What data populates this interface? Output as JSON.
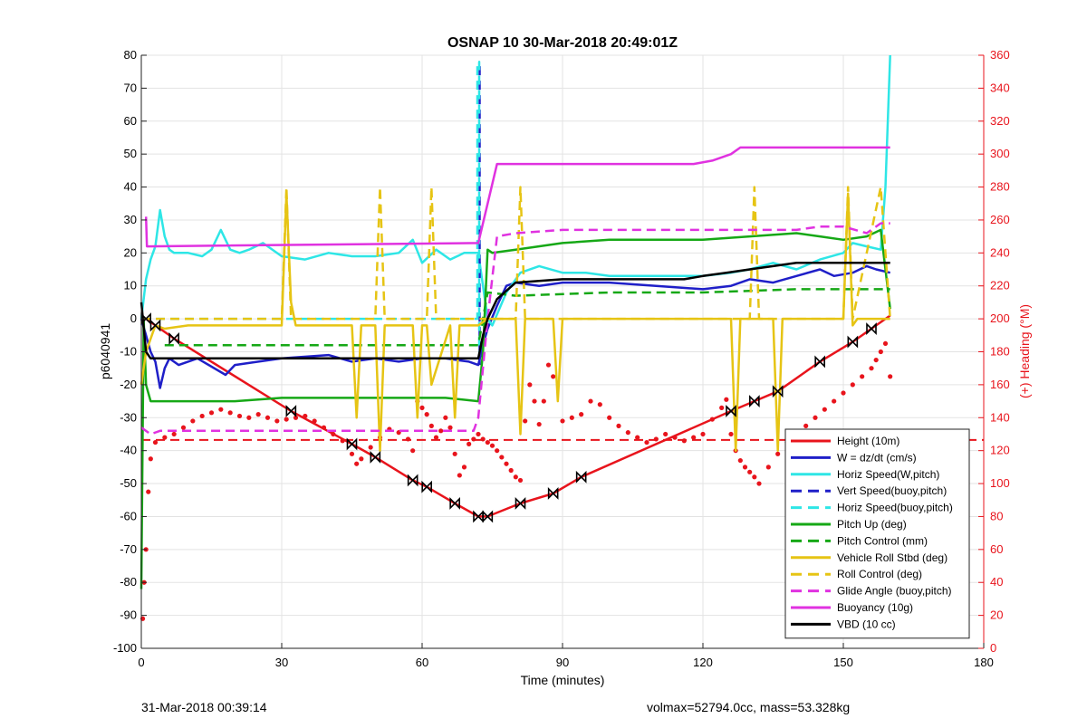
{
  "footer": {
    "timestamp": "31-Mar-2018 00:39:14",
    "summary": "volmax=52794.0cc, mass=53.328kg"
  },
  "chart_data": {
    "type": "line",
    "title": "OSNAP 10 30-Mar-2018 20:49:01Z",
    "xlabel": "Time (minutes)",
    "ylabel": "p6040941",
    "y2label": "(+) Heading (°M)",
    "xlim": [
      0,
      180
    ],
    "ylim": [
      -100,
      80
    ],
    "y2lim": [
      0,
      360
    ],
    "xticks": [
      0,
      30,
      60,
      90,
      120,
      150,
      180
    ],
    "yticks": [
      -100,
      -90,
      -80,
      -70,
      -60,
      -50,
      -40,
      -30,
      -20,
      -10,
      0,
      10,
      20,
      30,
      40,
      50,
      60,
      70,
      80
    ],
    "y2ticks": [
      0,
      20,
      40,
      60,
      80,
      100,
      120,
      140,
      160,
      180,
      200,
      220,
      240,
      260,
      280,
      300,
      320,
      340,
      360
    ],
    "grid": true,
    "legend_position": "bottom-right",
    "colors": {
      "red": "#e8141c",
      "blue": "#1f1fc8",
      "cyan": "#2ee6e6",
      "green": "#16a816",
      "yellow": "#e6c414",
      "magenta": "#e032e0",
      "black": "#000000",
      "axis_right": "#e8141c"
    },
    "series": [
      {
        "name": "Height (10m)",
        "color": "red",
        "style": "solid",
        "x": [
          0,
          1,
          7,
          32,
          45,
          50,
          58,
          61,
          67,
          72,
          74,
          81,
          88,
          94,
          126,
          131,
          136,
          145,
          152,
          156,
          160
        ],
        "y": [
          0,
          0,
          -6,
          -28,
          -38,
          -42,
          -49,
          -51,
          -56,
          -60,
          -60,
          -56,
          -53,
          -48,
          -28,
          -25,
          -22,
          -13,
          -7,
          -3,
          1
        ]
      },
      {
        "name": "W = dz/dt (cm/s)",
        "color": "blue",
        "style": "solid",
        "x": [
          0,
          1,
          2,
          3,
          4,
          5,
          6,
          8,
          12,
          18,
          20,
          25,
          30,
          40,
          45,
          50,
          55,
          60,
          65,
          70,
          72,
          73,
          74,
          76,
          78,
          80,
          85,
          90,
          100,
          110,
          120,
          126,
          130,
          135,
          140,
          145,
          148,
          152,
          155,
          157,
          160
        ],
        "y": [
          0,
          -5,
          -10,
          -13,
          -21,
          -15,
          -12,
          -14,
          -12,
          -17,
          -14,
          -13,
          -12,
          -11,
          -13,
          -12,
          -13,
          -12,
          -12,
          -13,
          -14,
          -8,
          -3,
          4,
          10,
          11,
          10,
          11,
          11,
          10,
          9,
          10,
          12,
          11,
          13,
          15,
          13,
          14,
          16,
          15,
          14
        ]
      },
      {
        "name": "Horiz Speed(W,pitch)",
        "color": "cyan",
        "style": "solid",
        "x": [
          0,
          1,
          2,
          3,
          4,
          5,
          6,
          7,
          10,
          13,
          15,
          17,
          19,
          21,
          23,
          26,
          30,
          35,
          40,
          45,
          50,
          55,
          58,
          60,
          63,
          66,
          69,
          72,
          73,
          74,
          75,
          78,
          81,
          85,
          90,
          95,
          100,
          110,
          120,
          126,
          130,
          135,
          140,
          145,
          150,
          152,
          155,
          158,
          159,
          160
        ],
        "y": [
          0,
          12,
          18,
          22,
          33,
          25,
          21,
          20,
          20,
          19,
          21,
          27,
          21,
          20,
          21,
          23,
          19,
          18,
          20,
          19,
          19,
          20,
          24,
          17,
          21,
          18,
          20,
          20,
          10,
          0,
          -2,
          8,
          14,
          16,
          14,
          14,
          13,
          13,
          13,
          14,
          15,
          17,
          15,
          18,
          20,
          23,
          22,
          21,
          40,
          80
        ]
      },
      {
        "name": "Vert Speed(buoy,pitch)",
        "color": "blue",
        "style": "dashed",
        "x": [
          72.3,
          72.3
        ],
        "y": [
          -14,
          78
        ]
      },
      {
        "name": "Horiz Speed(buoy,pitch)",
        "color": "cyan",
        "style": "dashed",
        "x": [
          0,
          1,
          10,
          30,
          60,
          71.8,
          71.8,
          72.2,
          72.2
        ],
        "y": [
          0,
          0,
          0,
          0,
          0,
          0,
          78,
          78,
          -10
        ]
      },
      {
        "name": "Pitch Up (deg)",
        "color": "green",
        "style": "solid",
        "x": [
          0,
          0.5,
          1,
          2,
          5,
          10,
          20,
          30,
          40,
          50,
          60,
          65,
          72,
          73,
          74,
          75,
          80,
          90,
          100,
          110,
          120,
          130,
          140,
          145,
          150,
          155,
          158,
          160
        ],
        "y": [
          -82,
          0,
          -20,
          -25,
          -25,
          -25,
          -25,
          -24,
          -24,
          -24,
          -24,
          -24,
          -25,
          -10,
          21,
          20,
          21,
          23,
          24,
          24,
          24,
          25,
          26,
          25,
          24,
          25,
          27,
          3
        ]
      },
      {
        "name": "Pitch Control (mm)",
        "color": "green",
        "style": "dashed",
        "x": [
          5,
          72,
          72,
          73,
          74,
          80,
          100,
          120,
          140,
          160
        ],
        "y": [
          -8,
          -8,
          -8,
          0,
          8,
          7,
          8,
          8,
          9,
          9
        ]
      },
      {
        "name": "Vehicle Roll Stbd (deg)",
        "color": "yellow",
        "style": "solid",
        "x": [
          0,
          1,
          3,
          5,
          10,
          30,
          31,
          32,
          33,
          45,
          46,
          47,
          50,
          51,
          52,
          58,
          59,
          60,
          61,
          62,
          66,
          67,
          68,
          72,
          74,
          80,
          81,
          82,
          85,
          88,
          89,
          90,
          126,
          127,
          128,
          135,
          136,
          137,
          150,
          151,
          152,
          153,
          155,
          158,
          160
        ],
        "y": [
          -20,
          -10,
          -2,
          -3,
          -2,
          -2,
          38,
          5,
          -2,
          -2,
          -30,
          -2,
          -2,
          -40,
          -2,
          -2,
          -30,
          -2,
          -2,
          -20,
          -2,
          -30,
          -2,
          -2,
          0,
          0,
          -35,
          0,
          0,
          0,
          -25,
          0,
          0,
          -40,
          0,
          0,
          -40,
          0,
          0,
          38,
          -2,
          0,
          0,
          0,
          0
        ]
      },
      {
        "name": "Roll Control (deg)",
        "color": "yellow",
        "style": "dashed",
        "x": [
          0,
          30,
          31,
          32,
          50,
          51,
          52,
          61,
          62,
          63,
          72,
          80,
          81,
          82,
          130,
          131,
          132,
          150,
          151,
          152,
          158,
          160
        ],
        "y": [
          0,
          0,
          40,
          0,
          0,
          40,
          0,
          0,
          40,
          0,
          0,
          0,
          40,
          0,
          0,
          40,
          0,
          0,
          40,
          0,
          40,
          0
        ]
      },
      {
        "name": "Glide Angle (buoy,pitch)",
        "color": "magenta",
        "style": "dashed",
        "x": [
          0,
          2,
          4,
          10,
          30,
          60,
          71,
          72,
          74,
          76,
          80,
          90,
          100,
          110,
          120,
          130,
          140,
          145,
          150,
          155,
          158,
          160
        ],
        "y": [
          -33,
          -35,
          -34,
          -34,
          -34,
          -34,
          -34,
          -30,
          0,
          25,
          26,
          27,
          27,
          27,
          27,
          27,
          27,
          28,
          28,
          26,
          29,
          29
        ]
      },
      {
        "name": "Buoyancy (10g)",
        "color": "magenta",
        "style": "solid",
        "x": [
          1,
          1.2,
          72,
          76,
          80,
          100,
          118,
          122,
          126,
          128,
          130,
          140,
          155,
          160
        ],
        "y": [
          31,
          22,
          23,
          47,
          47,
          47,
          47,
          48,
          50,
          52,
          52,
          52,
          52,
          52
        ]
      },
      {
        "name": "VBD (10 cc)",
        "color": "black",
        "style": "solid",
        "x": [
          0,
          1,
          2,
          10,
          30,
          70,
          72,
          73,
          74,
          76,
          80,
          90,
          110,
          116,
          120,
          125,
          130,
          135,
          140,
          160
        ],
        "y": [
          5,
          -10,
          -12,
          -12,
          -12,
          -12,
          -12,
          -5,
          0,
          6,
          11,
          12,
          12,
          12,
          13,
          14,
          15,
          16,
          17,
          17
        ]
      }
    ],
    "heading_reference": {
      "name": "Heading reference",
      "color": "red",
      "style": "dashed",
      "y2": 126.5,
      "x": [
        0,
        180
      ]
    },
    "heading_points": {
      "color": "red",
      "axis": "y2",
      "x": [
        0.3,
        0.6,
        1,
        1.5,
        2,
        3,
        5,
        7,
        9,
        11,
        13,
        15,
        17,
        19,
        21,
        23,
        25,
        27,
        29,
        31,
        33,
        35,
        37,
        39,
        41,
        43,
        45,
        46,
        47,
        49,
        51,
        53,
        55,
        57,
        58,
        59,
        60,
        61,
        62,
        63,
        64,
        65,
        66,
        67,
        68,
        69,
        70,
        71,
        72,
        73,
        74,
        75,
        76,
        77,
        78,
        79,
        80,
        81,
        82,
        83,
        84,
        85,
        86,
        87,
        88,
        90,
        92,
        94,
        96,
        98,
        100,
        102,
        104,
        106,
        108,
        110,
        112,
        114,
        116,
        118,
        120,
        122,
        124,
        125,
        126,
        127,
        128,
        129,
        130,
        131,
        132,
        134,
        136,
        138,
        140,
        142,
        144,
        146,
        148,
        150,
        152,
        154,
        156,
        157,
        158,
        159,
        160
      ],
      "y2": [
        18,
        40,
        60,
        95,
        115,
        125,
        128,
        130,
        134,
        138,
        141,
        143,
        145,
        143,
        141,
        140,
        142,
        140,
        138,
        139,
        140,
        141,
        138,
        134,
        130,
        126,
        118,
        112,
        115,
        122,
        128,
        133,
        131,
        127,
        120,
        150,
        146,
        142,
        135,
        128,
        132,
        140,
        134,
        118,
        105,
        110,
        124,
        127,
        130,
        127,
        125,
        123,
        120,
        116,
        112,
        108,
        104,
        102,
        138,
        160,
        150,
        136,
        150,
        172,
        165,
        138,
        140,
        142,
        150,
        148,
        140,
        135,
        131,
        128,
        125,
        127,
        130,
        128,
        126,
        128,
        130,
        139,
        146,
        151,
        130,
        120,
        114,
        110,
        107,
        104,
        100,
        110,
        118,
        125,
        130,
        135,
        140,
        145,
        150,
        155,
        160,
        165,
        170,
        175,
        180,
        185,
        165
      ]
    },
    "depth_markers": {
      "x": [
        1,
        3,
        7,
        32,
        45,
        50,
        58,
        61,
        67,
        72,
        74,
        81,
        88,
        94,
        126,
        131,
        136,
        145,
        152,
        156
      ],
      "y": [
        0,
        -2,
        -6,
        -28,
        -38,
        -42,
        -49,
        -51,
        -56,
        -60,
        -60,
        -56,
        -53,
        -48,
        -28,
        -25,
        -22,
        -13,
        -7,
        -3
      ]
    }
  }
}
